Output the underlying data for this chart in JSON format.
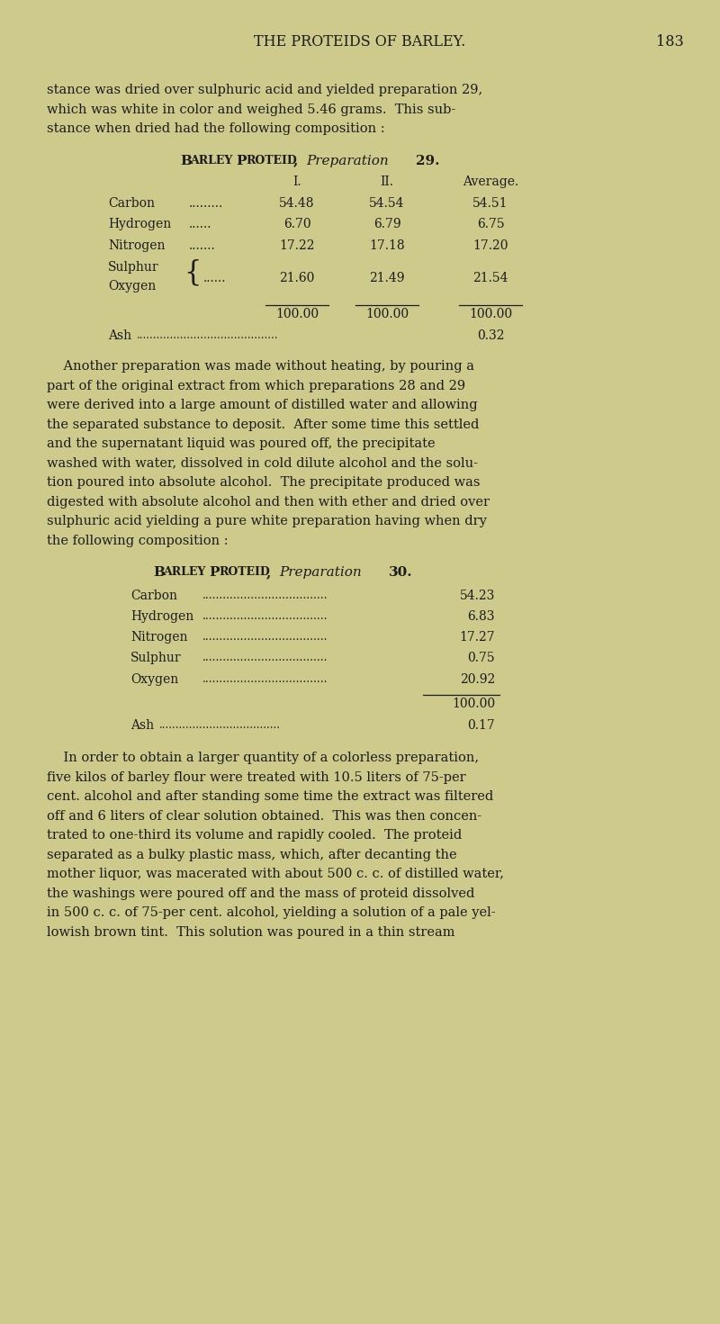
{
  "bg_color": "#ceca8b",
  "text_color": "#1c1c1c",
  "page_number": "183",
  "header": "THE PROTEIDS OF BARLEY.",
  "font_size_body": 10.5,
  "font_size_table": 10.0,
  "font_size_header": 11.5,
  "para1": [
    "stance was dried over sulphuric acid and yielded preparation 29,",
    "which was white in color and weighed 5.46 grams.  This sub-",
    "stance when dried had the following composition :"
  ],
  "table1_col_headers": [
    "I.",
    "II.",
    "Average."
  ],
  "table1_rows": [
    [
      "Carbon",
      ".........",
      "54.48",
      "54.54",
      "54.51"
    ],
    [
      "Hydrogen",
      "......",
      "6.70",
      "6.79",
      "6.75"
    ],
    [
      "Nitrogen",
      ".......",
      "17.22",
      "17.18",
      "17.20"
    ]
  ],
  "table1_sulphur_val": [
    "21.60",
    "21.49",
    "21.54"
  ],
  "table1_total": [
    "100.00",
    "100.00",
    "100.00"
  ],
  "table1_ash": "0.32",
  "para2": [
    "    Another preparation was made without heating, by pouring a",
    "part of the original extract from which preparations 28 and 29",
    "were derived into a large amount of distilled water and allowing",
    "the separated substance to deposit.  After some time this settled",
    "and the supernatant liquid was poured off, the precipitate",
    "washed with water, dissolved in cold dilute alcohol and the solu-",
    "tion poured into absolute alcohol.  The precipitate produced was",
    "digested with absolute alcohol and then with ether and dried over",
    "sulphuric acid yielding a pure white preparation having when dry",
    "the following composition :"
  ],
  "table2_rows": [
    [
      "Carbon",
      "54.23"
    ],
    [
      "Hydrogen",
      "6.83"
    ],
    [
      "Nitrogen",
      "17.27"
    ],
    [
      "Sulphur",
      "0.75"
    ],
    [
      "Oxygen",
      "20.92"
    ]
  ],
  "table2_total": "100.00",
  "table2_ash": "0.17",
  "para3": [
    "    In order to obtain a larger quantity of a colorless preparation,",
    "five kilos of barley flour were treated with 10.5 liters of 75-per",
    "cent. alcohol and after standing some time the extract was filtered",
    "off and 6 liters of clear solution obtained.  This was then concen-",
    "trated to one-third its volume and rapidly cooled.  The proteid",
    "separated as a bulky plastic mass, which, after decanting the",
    "mother liquor, was macerated with about 500 c. c. of distilled water,",
    "the washings were poured off and the mass of proteid dissolved",
    "in 500 c. c. of 75-per cent. alcohol, yielding a solution of a pale yel-",
    "lowish brown tint.  This solution was poured in a thin stream"
  ]
}
